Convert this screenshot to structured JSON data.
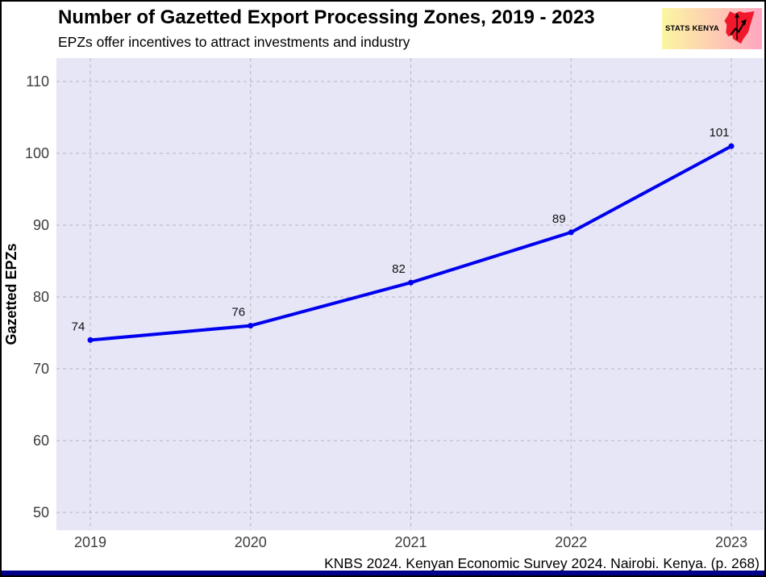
{
  "logo": {
    "text": "STATS KENYA",
    "bg_gradient_left": "#fbf6a2",
    "bg_gradient_right": "#ffa6c1",
    "map_color": "#f1182c"
  },
  "chart_data": {
    "type": "line",
    "title": "Number of Gazetted Export Processing Zones, 2019 - 2023",
    "subtitle": "EPZs offer incentives to attract investments and industry",
    "x": [
      "2019",
      "2020",
      "2021",
      "2022",
      "2023"
    ],
    "values": [
      74,
      76,
      82,
      89,
      101
    ],
    "data_labels": [
      "74",
      "76",
      "82",
      "89",
      "101"
    ],
    "xlabel": "",
    "ylabel": "Gazetted EPZs",
    "ylim": [
      50,
      110
    ],
    "yticks": [
      50,
      60,
      70,
      80,
      90,
      100,
      110
    ],
    "grid": "dashed",
    "legend": "none",
    "line_color": "#0000ee",
    "marker": "circle",
    "plot_bg_color": "#e6e6f7",
    "grid_color": "#b5b5bd",
    "tick_color": "#3d3d3d",
    "label_color": "#111111"
  },
  "footer": {
    "caption": "KNBS 2024. Kenyan Economic Survey 2024. Nairobi. Kenya. (p. 268)",
    "bar_color": "#00008b"
  }
}
